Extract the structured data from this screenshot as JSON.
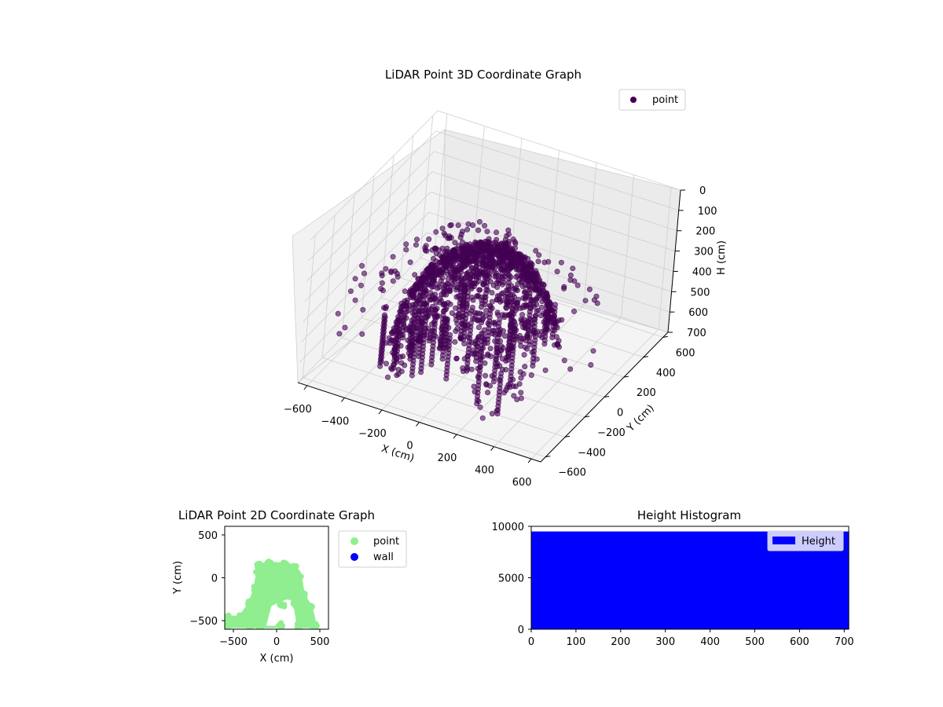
{
  "chart_data": [
    {
      "type": "scatter",
      "projection": "3d",
      "title": "LiDAR Point 3D Coordinate Graph",
      "xlabel": "X (cm)",
      "ylabel": "Y (cm)",
      "zlabel": "H (cm)",
      "xlim": [
        -650,
        650
      ],
      "ylim": [
        -650,
        650
      ],
      "zlim": [
        0,
        700
      ],
      "z_inverted": true,
      "xticks": [
        -600,
        -400,
        -200,
        0,
        200,
        400,
        600
      ],
      "yticks": [
        -600,
        -400,
        -200,
        0,
        200,
        400,
        600
      ],
      "zticks": [
        0,
        100,
        200,
        300,
        400,
        500,
        600,
        700
      ],
      "grid": true,
      "legend": {
        "position": "top-right",
        "entries": [
          "point"
        ]
      },
      "series": [
        {
          "name": "point",
          "color": "#440154",
          "note_points_approximate": true,
          "ring_radius_cm": [
            140,
            200,
            260,
            320,
            380,
            440,
            500,
            560,
            620
          ],
          "ring_height_cm": [
            40,
            100,
            170,
            240,
            320,
            410,
            500,
            590,
            660
          ],
          "clusters": {
            "body_x_range": [
              -300,
              400
            ],
            "body_y_range": [
              -600,
              150
            ],
            "body_h_range": [
              0,
              650
            ]
          }
        }
      ]
    },
    {
      "type": "scatter",
      "title": "LiDAR Point 2D Coordinate Graph",
      "xlabel": "X (cm)",
      "ylabel": "Y (cm)",
      "xlim": [
        -600,
        600
      ],
      "ylim": [
        -600,
        600
      ],
      "xticks": [
        -500,
        0,
        500
      ],
      "yticks": [
        -500,
        0,
        500
      ],
      "grid": false,
      "legend": {
        "position": "outside-right",
        "entries": [
          "point",
          "wall"
        ]
      },
      "series": [
        {
          "name": "point",
          "color": "#90ee90",
          "note_points_approximate": true,
          "shape_outline_xy": [
            [
              -560,
              -560
            ],
            [
              -560,
              -470
            ],
            [
              -420,
              -470
            ],
            [
              -300,
              -300
            ],
            [
              -240,
              -120
            ],
            [
              -210,
              60
            ],
            [
              -200,
              140
            ],
            [
              -80,
              160
            ],
            [
              90,
              150
            ],
            [
              200,
              130
            ],
            [
              260,
              40
            ],
            [
              300,
              -200
            ],
            [
              390,
              -350
            ],
            [
              440,
              -560
            ],
            [
              260,
              -560
            ],
            [
              220,
              -300
            ],
            [
              150,
              -200
            ],
            [
              60,
              -320
            ],
            [
              40,
              -560
            ],
            [
              -200,
              -560
            ],
            [
              -320,
              -560
            ]
          ]
        },
        {
          "name": "wall",
          "color": "#0000ff",
          "points": []
        }
      ]
    },
    {
      "type": "bar",
      "title": "Height Histogram",
      "xlim": [
        0,
        710
      ],
      "ylim": [
        0,
        10000
      ],
      "xticks": [
        0,
        100,
        200,
        300,
        400,
        500,
        600,
        700
      ],
      "yticks": [
        0,
        5000,
        10000
      ],
      "grid": false,
      "legend": {
        "position": "top-right",
        "entries": [
          "Height"
        ]
      },
      "series": [
        {
          "name": "Height",
          "color": "#0000ff",
          "note_bin_values_approximate": true,
          "bin_start": 0,
          "bin_width": 10,
          "values": [
            9500,
            9500,
            9500,
            9500,
            9500,
            9500,
            9500,
            9500,
            9500,
            9500,
            9500,
            9500,
            9500,
            9500,
            9500,
            9500,
            9500,
            9500,
            9500,
            9500,
            9500,
            9500,
            9500,
            9500,
            9500,
            9500,
            9500,
            9500,
            9500,
            9500,
            9500,
            9500,
            9500,
            9500,
            9500,
            9500,
            9500,
            9500,
            9500,
            9500,
            9500,
            9500,
            9500,
            9500,
            9500,
            9500,
            9500,
            9500,
            9500,
            9500,
            9500,
            9500,
            9500,
            9500,
            9500,
            9500,
            9500,
            9500,
            9500,
            9500,
            9500,
            9500,
            9500,
            9500,
            9500,
            9500,
            9500,
            9500,
            9500,
            9500,
            9500
          ]
        }
      ]
    }
  ]
}
